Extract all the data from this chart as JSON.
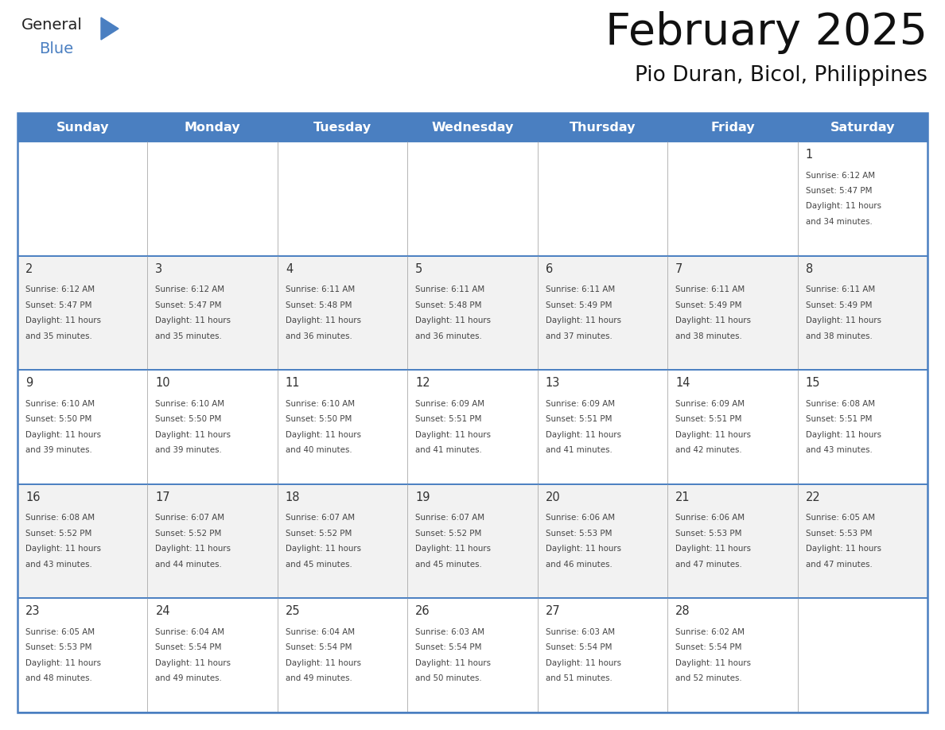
{
  "title": "February 2025",
  "subtitle": "Pio Duran, Bicol, Philippines",
  "header_color": "#4a7fc1",
  "header_text_color": "#FFFFFF",
  "bg_color": "#FFFFFF",
  "alt_row_color": "#F2F2F2",
  "border_color": "#4a7fc1",
  "cell_border_color": "#aaaaaa",
  "text_color": "#444444",
  "day_number_color": "#333333",
  "day_headers": [
    "Sunday",
    "Monday",
    "Tuesday",
    "Wednesday",
    "Thursday",
    "Friday",
    "Saturday"
  ],
  "calendar_data": [
    [
      null,
      null,
      null,
      null,
      null,
      null,
      {
        "day": 1,
        "sunrise": "6:12 AM",
        "sunset": "5:47 PM",
        "daylight_hours": 11,
        "daylight_minutes": 34
      }
    ],
    [
      {
        "day": 2,
        "sunrise": "6:12 AM",
        "sunset": "5:47 PM",
        "daylight_hours": 11,
        "daylight_minutes": 35
      },
      {
        "day": 3,
        "sunrise": "6:12 AM",
        "sunset": "5:47 PM",
        "daylight_hours": 11,
        "daylight_minutes": 35
      },
      {
        "day": 4,
        "sunrise": "6:11 AM",
        "sunset": "5:48 PM",
        "daylight_hours": 11,
        "daylight_minutes": 36
      },
      {
        "day": 5,
        "sunrise": "6:11 AM",
        "sunset": "5:48 PM",
        "daylight_hours": 11,
        "daylight_minutes": 36
      },
      {
        "day": 6,
        "sunrise": "6:11 AM",
        "sunset": "5:49 PM",
        "daylight_hours": 11,
        "daylight_minutes": 37
      },
      {
        "day": 7,
        "sunrise": "6:11 AM",
        "sunset": "5:49 PM",
        "daylight_hours": 11,
        "daylight_minutes": 38
      },
      {
        "day": 8,
        "sunrise": "6:11 AM",
        "sunset": "5:49 PM",
        "daylight_hours": 11,
        "daylight_minutes": 38
      }
    ],
    [
      {
        "day": 9,
        "sunrise": "6:10 AM",
        "sunset": "5:50 PM",
        "daylight_hours": 11,
        "daylight_minutes": 39
      },
      {
        "day": 10,
        "sunrise": "6:10 AM",
        "sunset": "5:50 PM",
        "daylight_hours": 11,
        "daylight_minutes": 39
      },
      {
        "day": 11,
        "sunrise": "6:10 AM",
        "sunset": "5:50 PM",
        "daylight_hours": 11,
        "daylight_minutes": 40
      },
      {
        "day": 12,
        "sunrise": "6:09 AM",
        "sunset": "5:51 PM",
        "daylight_hours": 11,
        "daylight_minutes": 41
      },
      {
        "day": 13,
        "sunrise": "6:09 AM",
        "sunset": "5:51 PM",
        "daylight_hours": 11,
        "daylight_minutes": 41
      },
      {
        "day": 14,
        "sunrise": "6:09 AM",
        "sunset": "5:51 PM",
        "daylight_hours": 11,
        "daylight_minutes": 42
      },
      {
        "day": 15,
        "sunrise": "6:08 AM",
        "sunset": "5:51 PM",
        "daylight_hours": 11,
        "daylight_minutes": 43
      }
    ],
    [
      {
        "day": 16,
        "sunrise": "6:08 AM",
        "sunset": "5:52 PM",
        "daylight_hours": 11,
        "daylight_minutes": 43
      },
      {
        "day": 17,
        "sunrise": "6:07 AM",
        "sunset": "5:52 PM",
        "daylight_hours": 11,
        "daylight_minutes": 44
      },
      {
        "day": 18,
        "sunrise": "6:07 AM",
        "sunset": "5:52 PM",
        "daylight_hours": 11,
        "daylight_minutes": 45
      },
      {
        "day": 19,
        "sunrise": "6:07 AM",
        "sunset": "5:52 PM",
        "daylight_hours": 11,
        "daylight_minutes": 45
      },
      {
        "day": 20,
        "sunrise": "6:06 AM",
        "sunset": "5:53 PM",
        "daylight_hours": 11,
        "daylight_minutes": 46
      },
      {
        "day": 21,
        "sunrise": "6:06 AM",
        "sunset": "5:53 PM",
        "daylight_hours": 11,
        "daylight_minutes": 47
      },
      {
        "day": 22,
        "sunrise": "6:05 AM",
        "sunset": "5:53 PM",
        "daylight_hours": 11,
        "daylight_minutes": 47
      }
    ],
    [
      {
        "day": 23,
        "sunrise": "6:05 AM",
        "sunset": "5:53 PM",
        "daylight_hours": 11,
        "daylight_minutes": 48
      },
      {
        "day": 24,
        "sunrise": "6:04 AM",
        "sunset": "5:54 PM",
        "daylight_hours": 11,
        "daylight_minutes": 49
      },
      {
        "day": 25,
        "sunrise": "6:04 AM",
        "sunset": "5:54 PM",
        "daylight_hours": 11,
        "daylight_minutes": 49
      },
      {
        "day": 26,
        "sunrise": "6:03 AM",
        "sunset": "5:54 PM",
        "daylight_hours": 11,
        "daylight_minutes": 50
      },
      {
        "day": 27,
        "sunrise": "6:03 AM",
        "sunset": "5:54 PM",
        "daylight_hours": 11,
        "daylight_minutes": 51
      },
      {
        "day": 28,
        "sunrise": "6:02 AM",
        "sunset": "5:54 PM",
        "daylight_hours": 11,
        "daylight_minutes": 52
      },
      null
    ]
  ],
  "logo_triangle_color": "#4a7fc1",
  "logo_general_color": "#222222",
  "logo_blue_color": "#4a7fc1"
}
